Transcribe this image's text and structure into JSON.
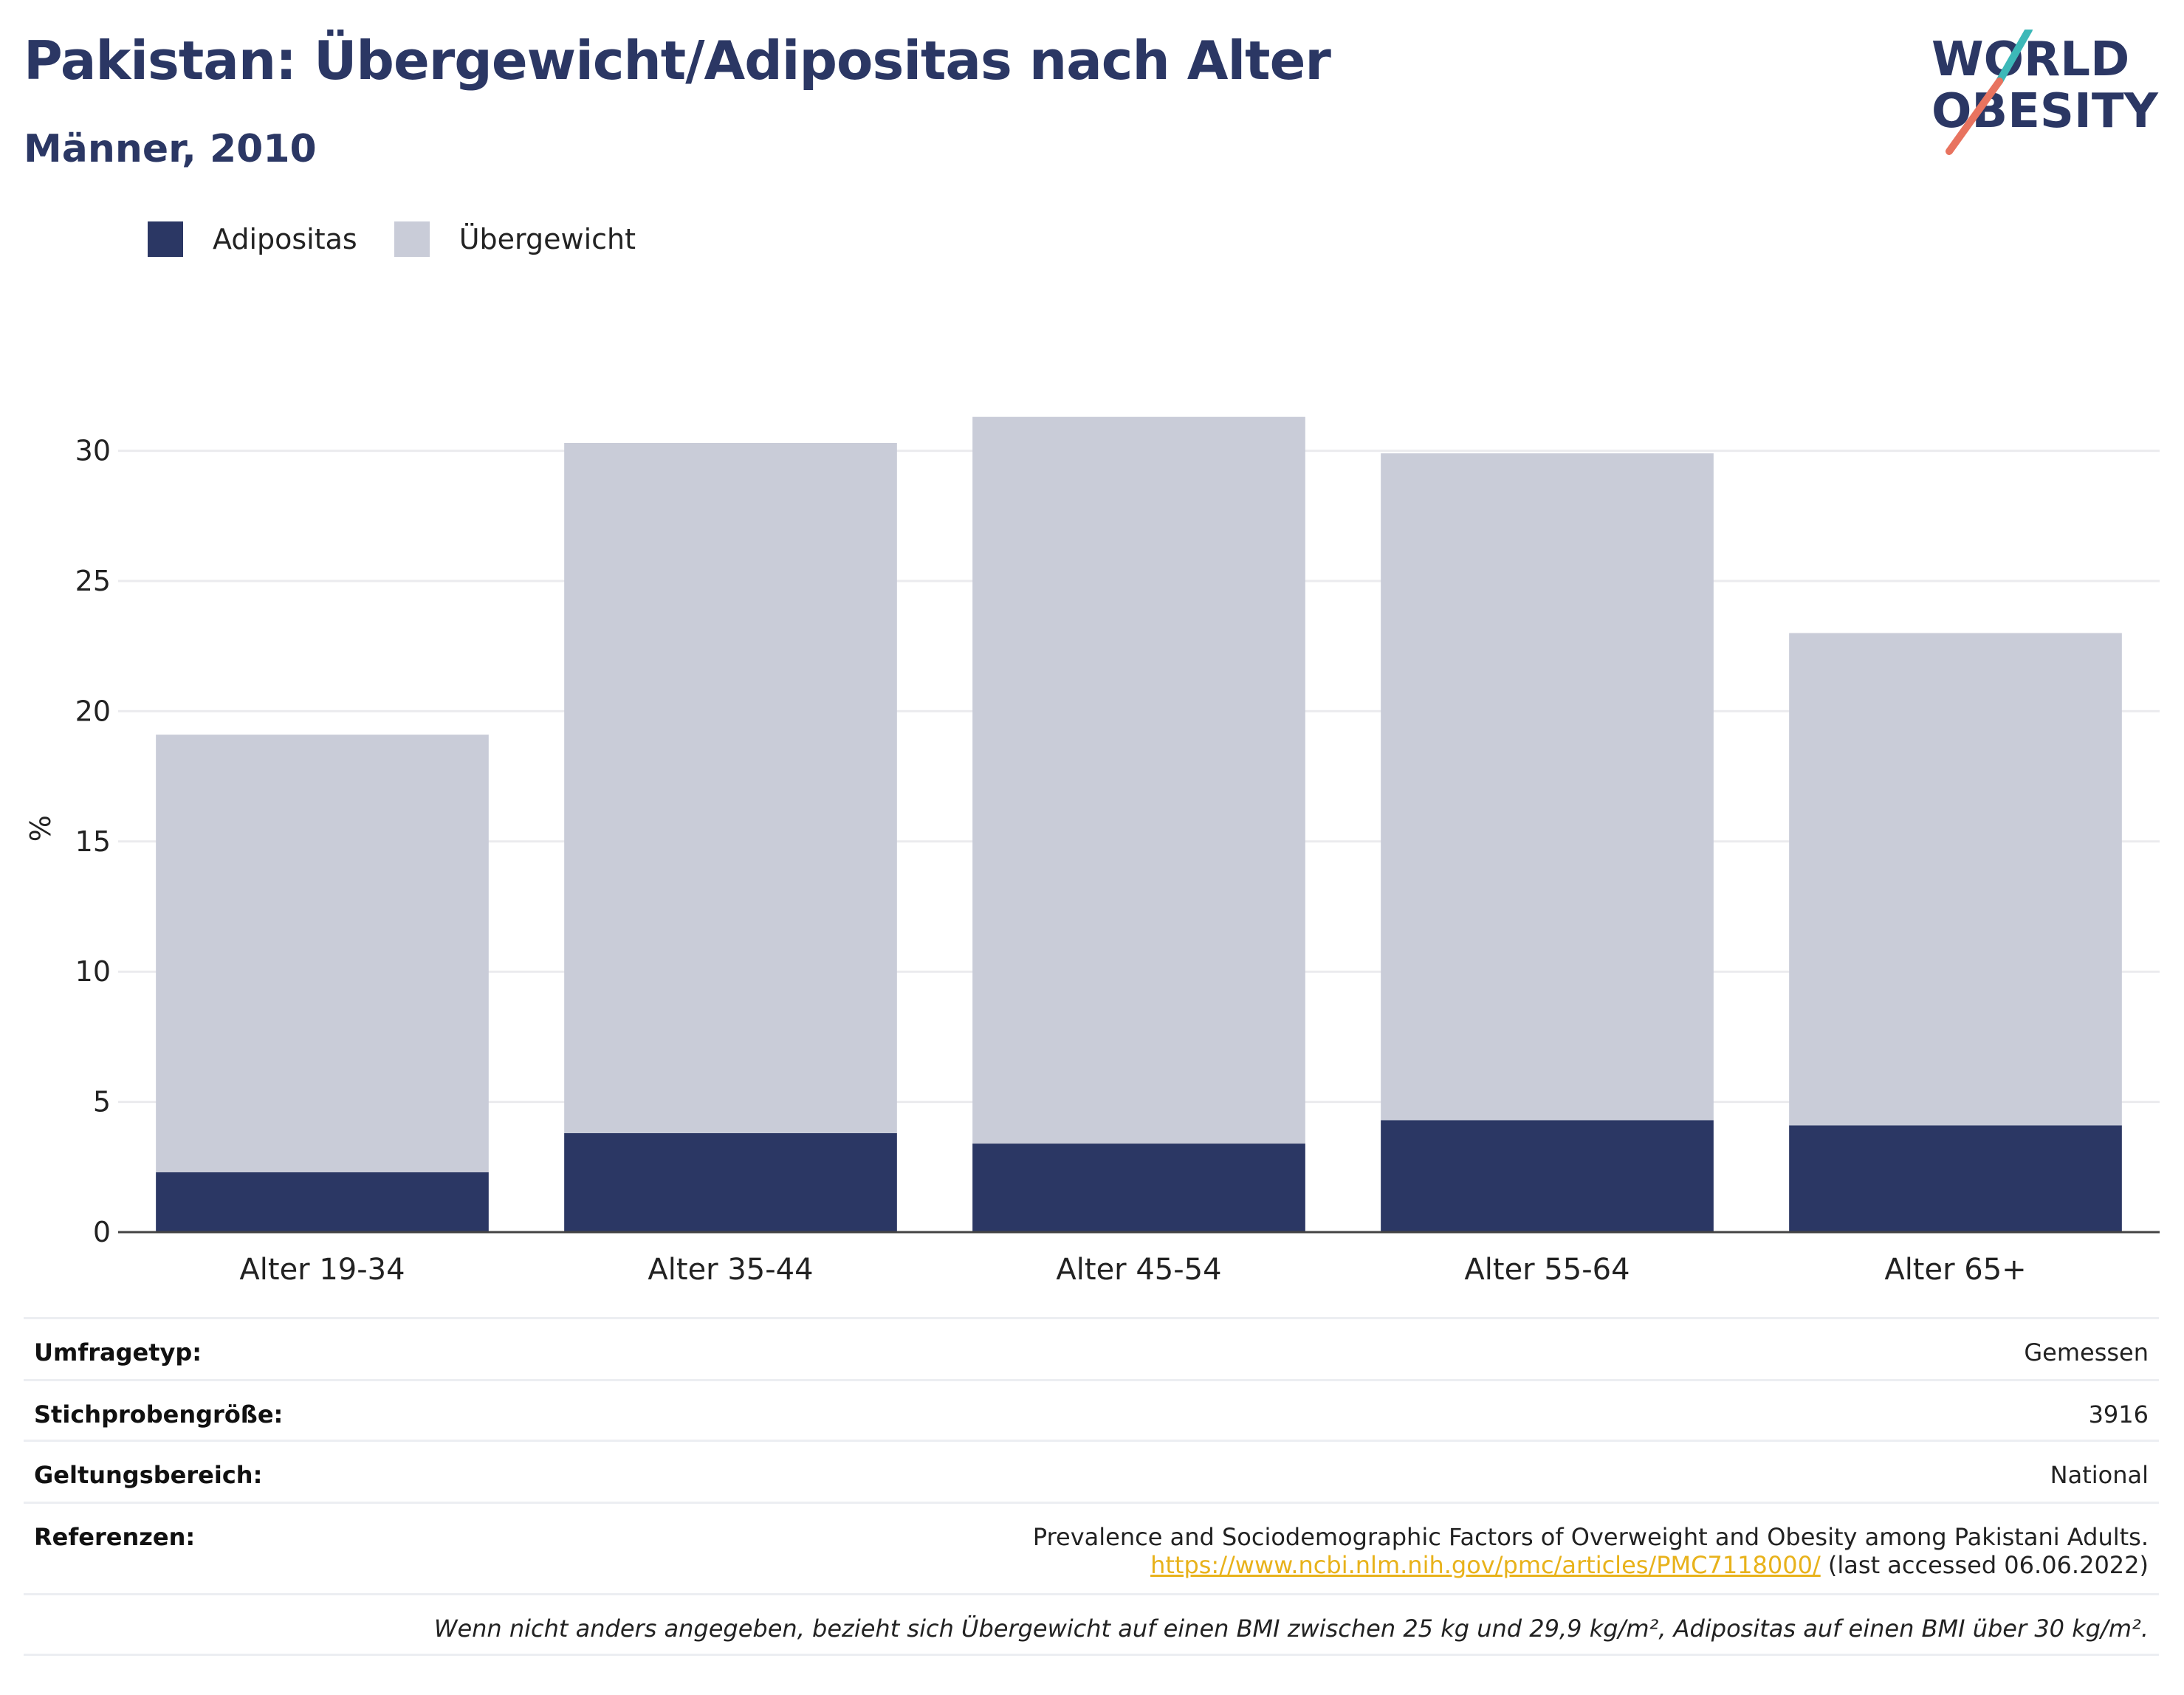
{
  "header": {
    "title": "Pakistan: Übergewicht/Adipositas nach Alter",
    "subtitle": "Männer, 2010",
    "logo_line1": "WORLD",
    "logo_line2": "OBESITY"
  },
  "legend": [
    {
      "label": "Adipositas",
      "color": "#2b3764"
    },
    {
      "label": "Übergewicht",
      "color": "#c9ccd8"
    }
  ],
  "chart_data": {
    "type": "bar",
    "stacked": true,
    "categories": [
      "Alter 19-34",
      "Alter 35-44",
      "Alter 45-54",
      "Alter 55-64",
      "Alter 65+"
    ],
    "series": [
      {
        "name": "Adipositas",
        "values": [
          2.3,
          3.8,
          3.4,
          4.3,
          4.1
        ],
        "color": "#2b3764"
      },
      {
        "name": "Übergewicht",
        "values": [
          16.8,
          26.5,
          27.9,
          25.6,
          18.9
        ],
        "color": "#c9ccd8"
      }
    ],
    "ylabel": "%",
    "ylim": [
      0,
      32
    ],
    "yticks": [
      0,
      5,
      10,
      15,
      20,
      25,
      30
    ],
    "grid": true,
    "legend_position": "top-left"
  },
  "info": {
    "survey_type_label": "Umfragetyp:",
    "survey_type_value": "Gemessen",
    "sample_size_label": "Stichprobengröße:",
    "sample_size_value": "3916",
    "scope_label": "Geltungsbereich:",
    "scope_value": "National",
    "references_label": "Referenzen:",
    "reference_title": "Prevalence and Sociodemographic Factors of Overweight and Obesity among Pakistani Adults.",
    "reference_url": "https://www.ncbi.nlm.nih.gov/pmc/articles/PMC7118000/",
    "reference_accessed": "(last accessed 06.06.2022)",
    "footnote": "Wenn nicht anders angegeben, bezieht sich Übergewicht auf einen BMI zwischen 25 kg und 29,9 kg/m², Adipositas auf einen BMI über 30 kg/m²."
  }
}
